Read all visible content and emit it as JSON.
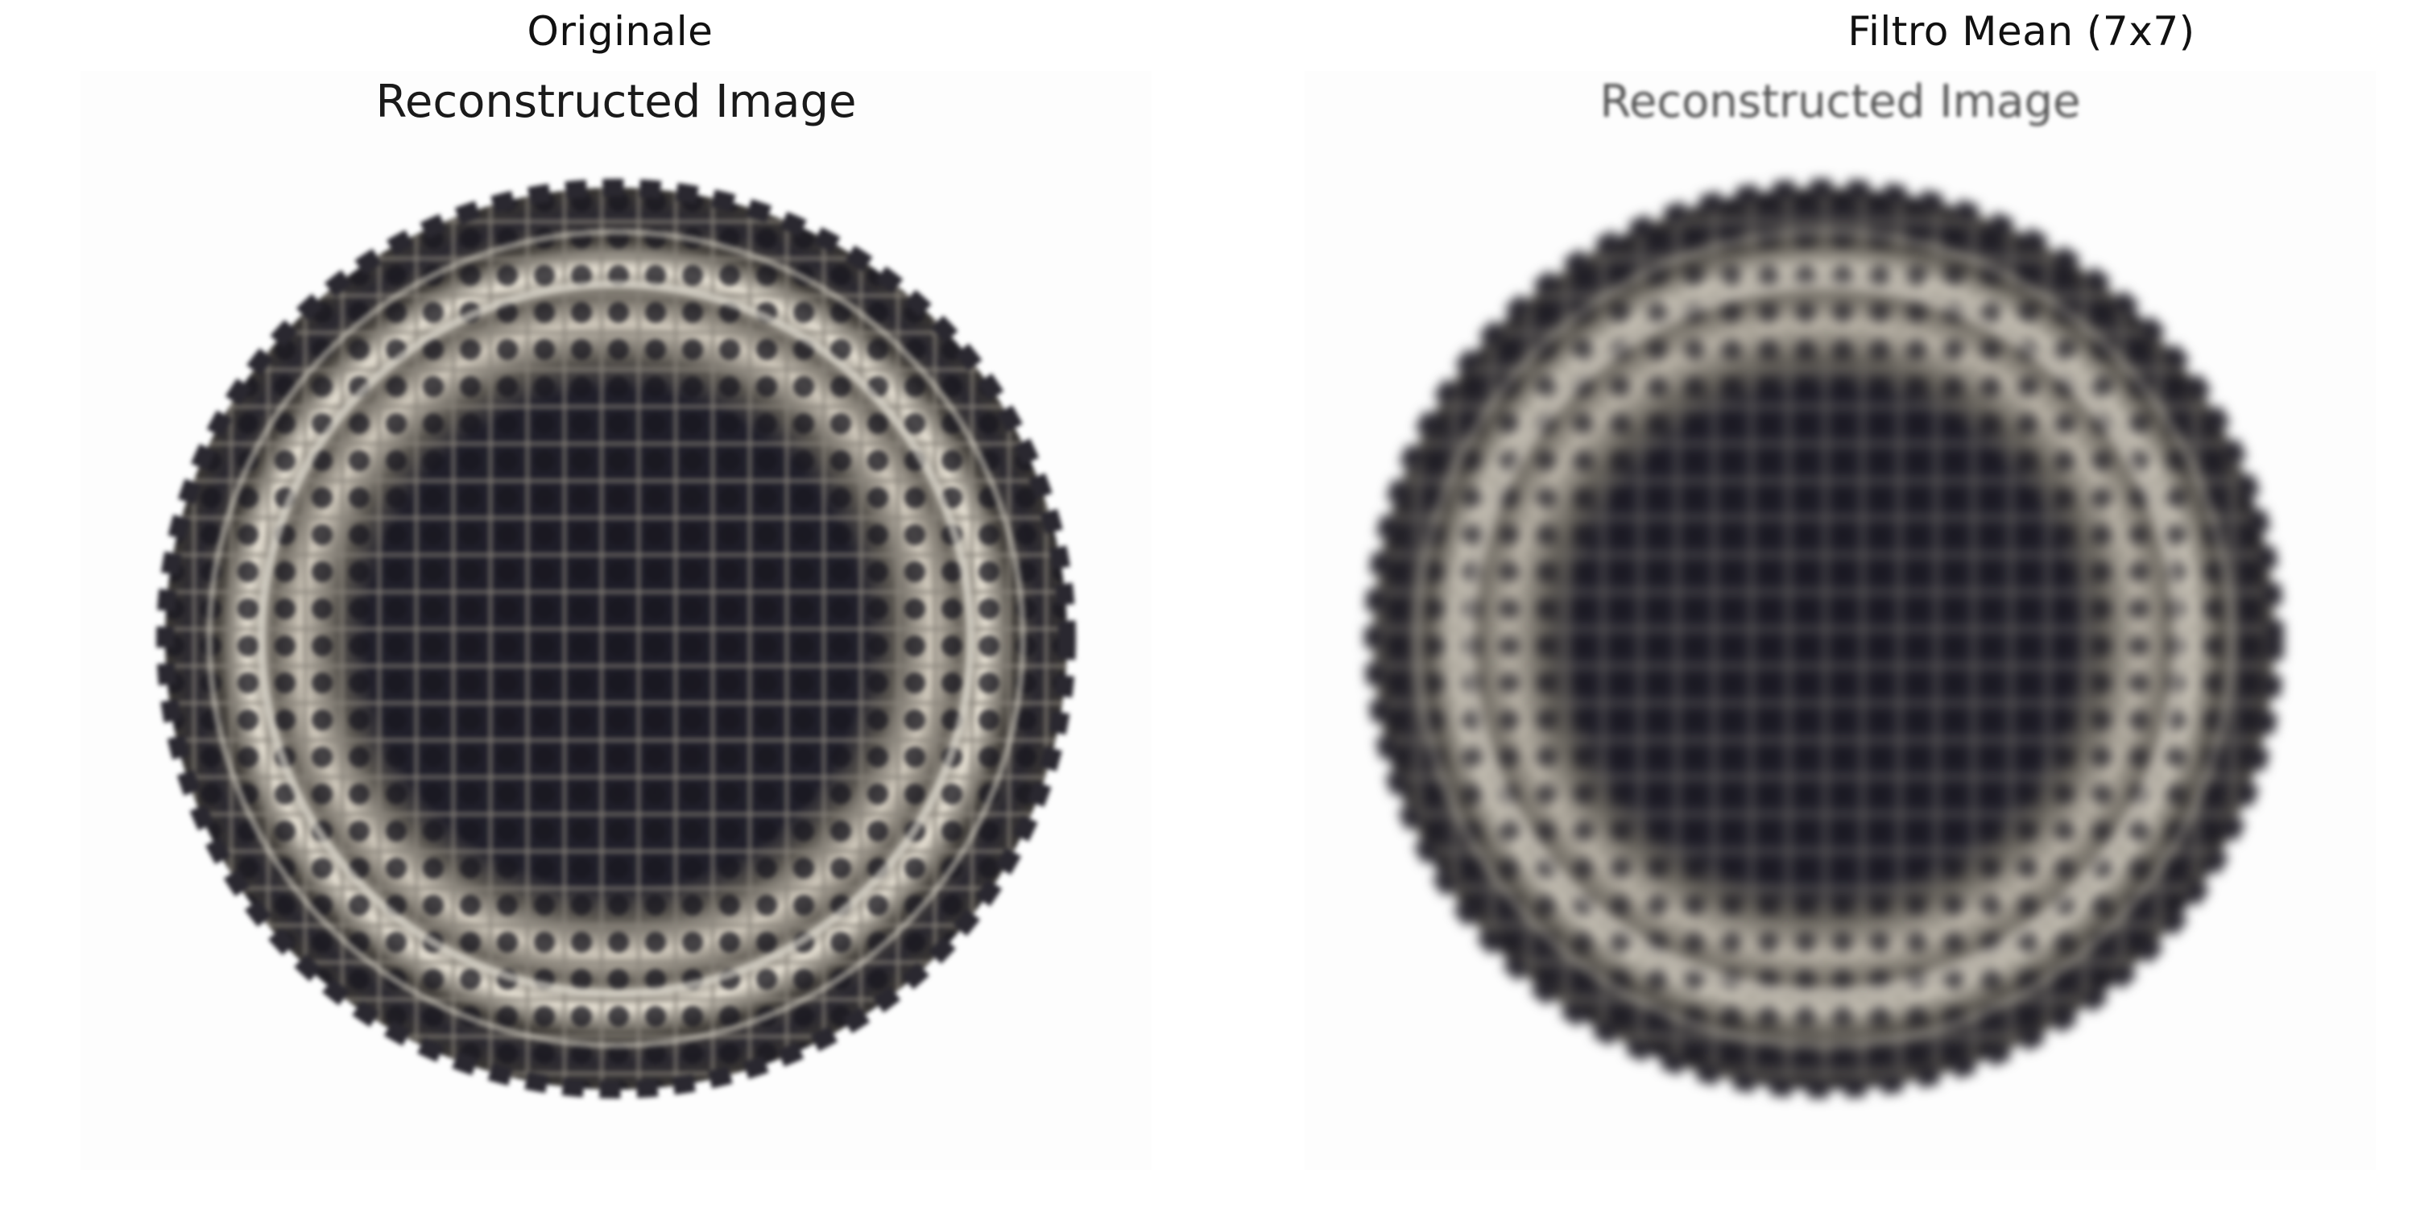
{
  "panels": [
    {
      "title": "Originale",
      "image_caption": "Reconstructed Image",
      "image_description_icon": "halftone-disc-image"
    },
    {
      "title": "Filtro Mean (7x7)",
      "image_caption": "Reconstructed Image",
      "image_description_icon": "halftone-disc-image-blurred"
    }
  ],
  "colors": {
    "background": "#ffffff",
    "disc_dark": "#1c1b26",
    "disc_light": "#e8e2d6",
    "title_text": "#111111"
  }
}
